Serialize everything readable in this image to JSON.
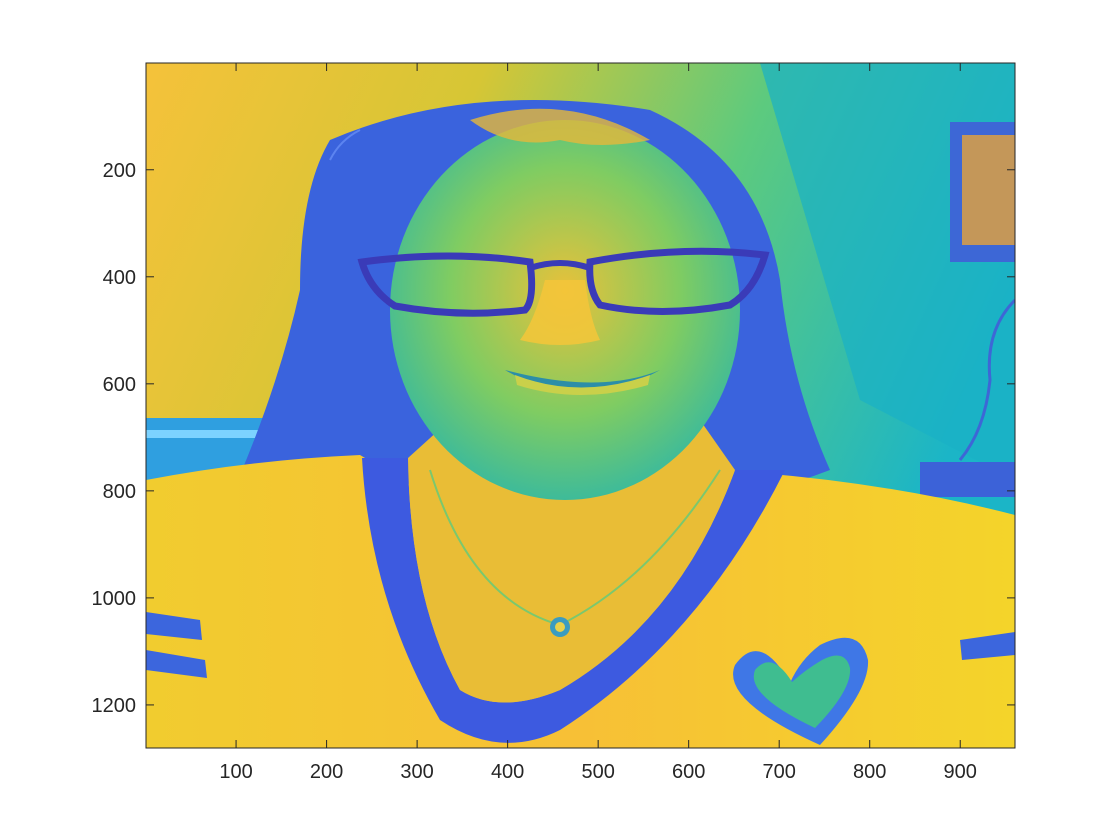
{
  "figure": {
    "background": "#ffffff",
    "axes_color": "#262626",
    "image_description_colormap": "parula",
    "x_ticks": [
      "100",
      "200",
      "300",
      "400",
      "500",
      "600",
      "700",
      "800",
      "900"
    ],
    "y_ticks": [
      "200",
      "400",
      "600",
      "800",
      "1000",
      "1200"
    ]
  },
  "chart_data": {
    "type": "heatmap",
    "title": "",
    "xlabel": "",
    "ylabel": "",
    "xlim": [
      0.5,
      960.5
    ],
    "ylim": [
      0.5,
      1280.5
    ],
    "y_direction": "reverse",
    "x_ticks": [
      100,
      200,
      300,
      400,
      500,
      600,
      700,
      800,
      900
    ],
    "y_ticks": [
      200,
      400,
      600,
      800,
      1000,
      1200
    ],
    "colormap": "parula",
    "grid": false
  }
}
